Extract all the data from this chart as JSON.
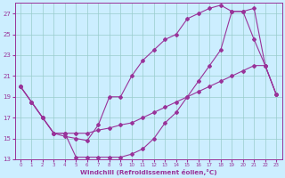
{
  "xlabel": "Windchill (Refroidissement éolien,°C)",
  "bg_color": "#cceeff",
  "line_color": "#993399",
  "grid_color": "#99cccc",
  "ylim": [
    13,
    28
  ],
  "xlim": [
    -0.5,
    23.5
  ],
  "yticks": [
    13,
    15,
    17,
    19,
    21,
    23,
    25,
    27
  ],
  "xticks": [
    0,
    1,
    2,
    3,
    4,
    5,
    6,
    7,
    8,
    9,
    10,
    11,
    12,
    13,
    14,
    15,
    16,
    17,
    18,
    19,
    20,
    21,
    22,
    23
  ],
  "line1_x": [
    0,
    1,
    2,
    3,
    4,
    5,
    6,
    7,
    8,
    9,
    10,
    11,
    12,
    13,
    14,
    15,
    16,
    17,
    18,
    19,
    20,
    21,
    22,
    23
  ],
  "line1_y": [
    20.0,
    18.5,
    17.0,
    15.5,
    15.5,
    13.2,
    13.2,
    13.2,
    13.2,
    13.2,
    13.5,
    14.0,
    15.0,
    16.5,
    17.5,
    19.0,
    20.5,
    22.0,
    23.5,
    27.2,
    27.2,
    27.5,
    22.0,
    19.2
  ],
  "line2_x": [
    0,
    1,
    2,
    3,
    4,
    5,
    6,
    7,
    8,
    9,
    10,
    11,
    12,
    13,
    14,
    15,
    16,
    17,
    18,
    19,
    20,
    21,
    22,
    23
  ],
  "line2_y": [
    20.0,
    18.5,
    17.0,
    15.5,
    15.2,
    15.0,
    14.8,
    16.3,
    19.0,
    19.0,
    21.0,
    22.5,
    23.5,
    24.5,
    25.0,
    26.5,
    27.0,
    27.5,
    27.8,
    27.2,
    27.2,
    24.5,
    22.0,
    19.2
  ],
  "line3_x": [
    0,
    1,
    2,
    3,
    4,
    5,
    6,
    7,
    8,
    9,
    10,
    11,
    12,
    13,
    14,
    15,
    16,
    17,
    18,
    19,
    20,
    21,
    22,
    23
  ],
  "line3_y": [
    20.0,
    18.5,
    17.0,
    15.5,
    15.5,
    15.5,
    15.5,
    15.8,
    16.0,
    16.3,
    16.5,
    17.0,
    17.5,
    18.0,
    18.5,
    19.0,
    19.5,
    20.0,
    20.5,
    21.0,
    21.5,
    22.0,
    22.0,
    19.2
  ]
}
